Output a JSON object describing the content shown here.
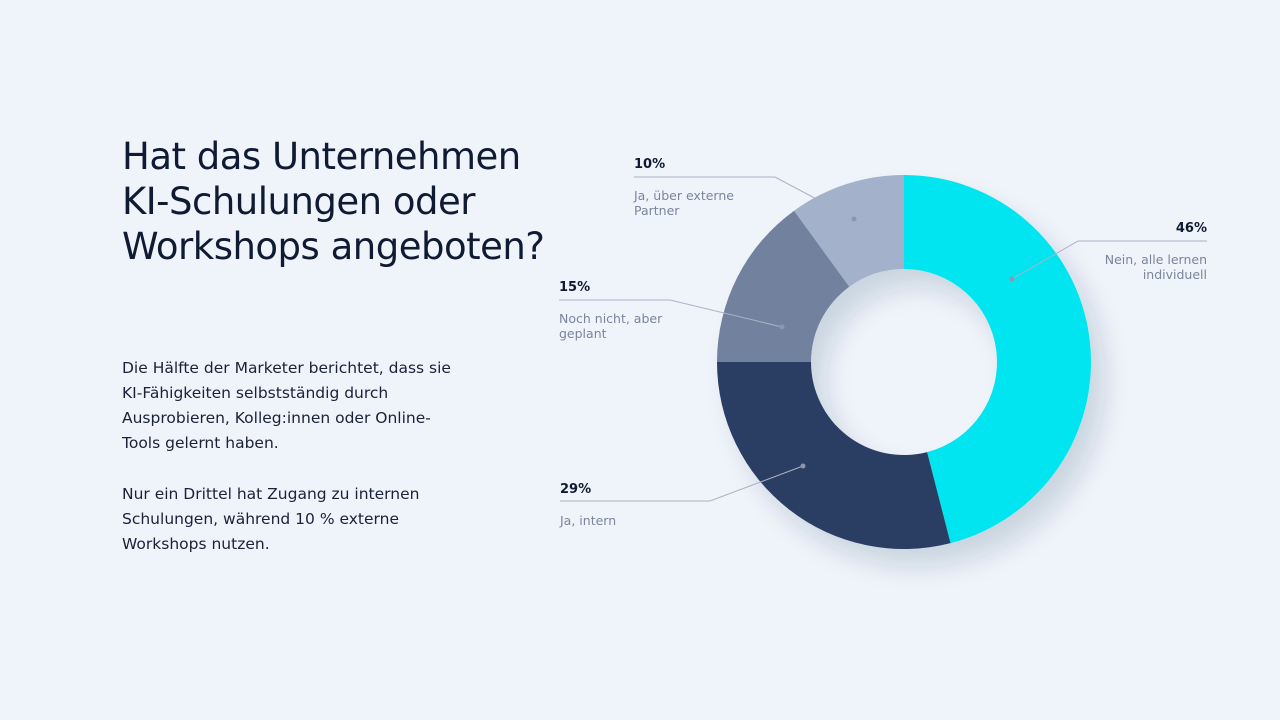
{
  "chart_data": {
    "type": "donut",
    "title": "Hat das Unternehmen KI-Schulungen oder Workshops angeboten?",
    "paragraphs": [
      "Die Hälfte der Marketer berichtet, dass sie KI-Fähigkeiten selbstständig durch Ausprobieren, Kolleg:innen oder Online-Tools gelernt haben.",
      "Nur ein Drittel hat Zugang zu internen Schulungen, während 10 % externe Workshops nutzen."
    ],
    "categories": [
      "Nein, alle lernen individuell",
      "Ja, intern",
      "Noch nicht, aber geplant",
      "Ja, über externe Partner"
    ],
    "values": [
      46,
      29,
      15,
      10
    ],
    "value_labels": [
      "46%",
      "29%",
      "15%",
      "10%"
    ],
    "colors": [
      "#00e5ef",
      "#2c3e63",
      "#72819e",
      "#a4b1cb"
    ]
  }
}
